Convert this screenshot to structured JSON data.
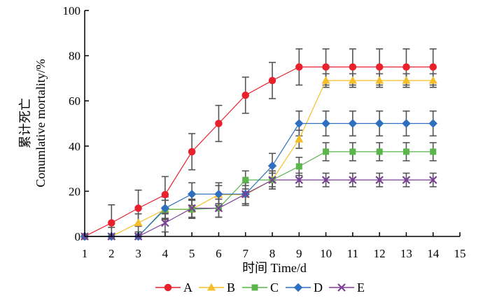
{
  "chart_data": {
    "type": "line",
    "title": "",
    "xlabel": "时间 Time/d",
    "ylabel_cn": "累计死亡",
    "ylabel": "Conumlative mortality/%",
    "xlim": [
      1,
      15
    ],
    "ylim": [
      0,
      100
    ],
    "xticks": [
      1,
      2,
      3,
      4,
      5,
      6,
      7,
      8,
      9,
      10,
      11,
      12,
      13,
      14,
      15
    ],
    "yticks": [
      0,
      20,
      40,
      60,
      80,
      100
    ],
    "grid": false,
    "legend_position": "bottom",
    "x": [
      1,
      2,
      3,
      4,
      5,
      6,
      7,
      8,
      9,
      10,
      11,
      12,
      13,
      14
    ],
    "series": [
      {
        "name": "A",
        "color": "#e8212d",
        "marker": "circle",
        "values": [
          0,
          6,
          12.5,
          18.5,
          37.5,
          50,
          62.5,
          69,
          75,
          75,
          75,
          75,
          75,
          75
        ],
        "errors": [
          0,
          8,
          8,
          8,
          8,
          8,
          8,
          8,
          8,
          8,
          8,
          8,
          8,
          8
        ]
      },
      {
        "name": "B",
        "color": "#f5bf2a",
        "marker": "triangle",
        "values": [
          0,
          0,
          6,
          12,
          12,
          18.5,
          18.5,
          25,
          43,
          69,
          69,
          69,
          69,
          69
        ],
        "errors": [
          0,
          4,
          4,
          4,
          4,
          4,
          4,
          4,
          4,
          3,
          3,
          3,
          3,
          3
        ]
      },
      {
        "name": "C",
        "color": "#5ab54b",
        "marker": "square",
        "values": [
          0,
          0,
          0,
          12,
          12,
          12.5,
          25,
          25,
          31,
          37.5,
          37.5,
          37.5,
          37.5,
          37.5
        ],
        "errors": [
          0,
          0,
          0,
          4,
          4,
          4,
          4,
          4,
          4,
          4,
          4,
          4,
          4,
          4
        ]
      },
      {
        "name": "D",
        "color": "#2f6fc0",
        "marker": "diamond",
        "values": [
          0,
          0,
          0,
          12.5,
          18.75,
          18.75,
          18.75,
          31.25,
          50,
          50,
          50,
          50,
          50,
          50
        ],
        "errors": [
          0,
          0,
          0,
          5,
          5,
          5,
          5,
          5.5,
          5.5,
          5.5,
          5.5,
          5.5,
          5.5,
          5.5
        ]
      },
      {
        "name": "E",
        "color": "#7b3f96",
        "marker": "x",
        "values": [
          0,
          0,
          0,
          6,
          12.5,
          12.5,
          18.75,
          25,
          25,
          25,
          25,
          25,
          25,
          25
        ],
        "errors": [
          0,
          0,
          0,
          4,
          4,
          4,
          5,
          3,
          3,
          3,
          3,
          3,
          3,
          3
        ]
      }
    ]
  }
}
